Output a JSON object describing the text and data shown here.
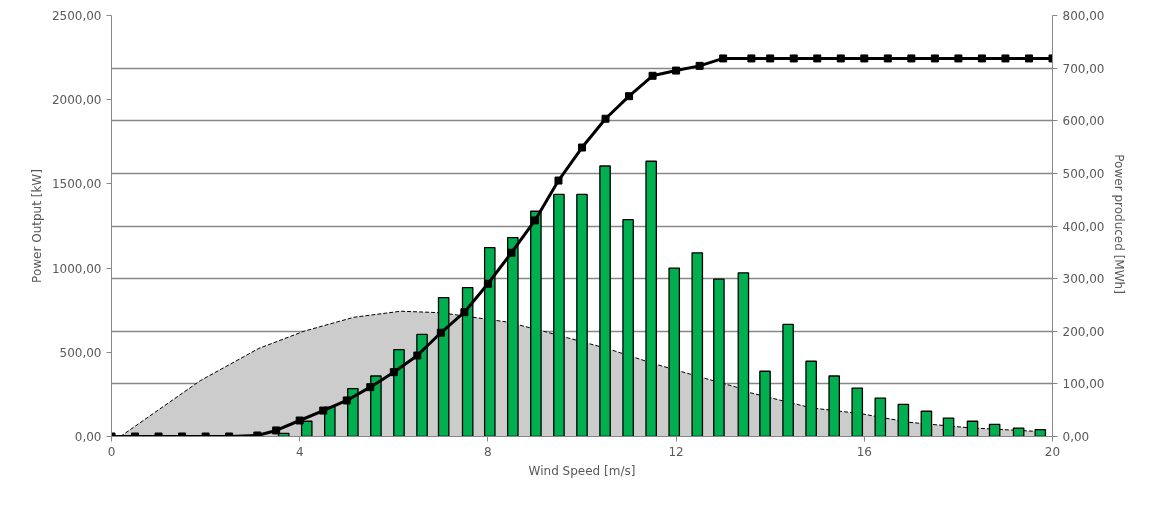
{
  "chart_data": {
    "type": "line",
    "xlabel": "Wind Speed [m/s]",
    "ylabel": "Power Output [kW]",
    "y2label": "Power produced  [MWh]",
    "xlim": [
      0,
      20
    ],
    "xticks": [
      0,
      4,
      8,
      12,
      16,
      20
    ],
    "ylim": [
      0,
      2500
    ],
    "yticks": [
      {
        "value": 0,
        "label": "0,00"
      },
      {
        "value": 500,
        "label": "500,00"
      },
      {
        "value": 1000,
        "label": "1000,00"
      },
      {
        "value": 1500,
        "label": "1500,00"
      },
      {
        "value": 2000,
        "label": "2000,00"
      },
      {
        "value": 2500,
        "label": "2500,00"
      }
    ],
    "y2lim": [
      0,
      800
    ],
    "y2ticks": [
      {
        "value": 0,
        "label": "0,00"
      },
      {
        "value": 100,
        "label": "100,00"
      },
      {
        "value": 200,
        "label": "200,00"
      },
      {
        "value": 300,
        "label": "300,00"
      },
      {
        "value": 400,
        "label": "400,00"
      },
      {
        "value": 500,
        "label": "500,00"
      },
      {
        "value": 600,
        "label": "600,00"
      },
      {
        "value": 700,
        "label": "700,00"
      },
      {
        "value": 800,
        "label": "800,00"
      }
    ],
    "grid": "y",
    "series": [
      {
        "type": "area",
        "color": "#cccccc",
        "line_style": "dashed",
        "x": [
          0.19,
          1.89,
          3.13,
          4.09,
          5.15,
          6.15,
          7.0,
          8.43,
          9.13,
          10.55,
          11.53,
          12.53,
          13.32,
          13.53,
          14.87,
          15.94,
          16.93,
          18.21,
          19.62
        ],
        "values": [
          0,
          332,
          523,
          625,
          708,
          744,
          735,
          679,
          629,
          521,
          432,
          352,
          290,
          263,
          170,
          135,
          85,
          52,
          31
        ]
      },
      {
        "type": "bar",
        "axis": "y2",
        "color": "#00b050",
        "x": [
          3.66,
          4.15,
          4.64,
          5.13,
          5.62,
          6.11,
          6.6,
          7.06,
          7.57,
          8.04,
          8.53,
          9.02,
          9.51,
          10.0,
          10.49,
          10.98,
          11.47,
          11.96,
          12.45,
          12.91,
          13.43,
          13.89,
          14.38,
          14.87,
          15.36,
          15.85,
          16.34,
          16.83,
          17.32,
          17.79,
          18.3,
          18.77,
          19.28,
          19.74
        ],
        "values": [
          6,
          29,
          56,
          91,
          115,
          165,
          194,
          264,
          283,
          359,
          378,
          428,
          460,
          460,
          514,
          412,
          523,
          320,
          349,
          299,
          311,
          124,
          213,
          143,
          115,
          92,
          73,
          61,
          48,
          35,
          29,
          23,
          16,
          13
        ]
      },
      {
        "color": "#000000",
        "marker": "square",
        "line_style": "solid",
        "x": [
          0,
          0.5,
          1,
          1.5,
          2,
          2.5,
          3.1,
          3.5,
          4,
          4.5,
          5,
          5.5,
          6,
          6.5,
          7,
          7.5,
          8,
          8.5,
          9,
          9.5,
          10,
          10.5,
          11,
          11.5,
          12,
          12.5,
          13,
          13.6,
          14,
          14.5,
          15,
          15.5,
          16,
          16.5,
          17,
          17.5,
          18,
          18.5,
          19,
          19.5,
          20
        ],
        "values": [
          0,
          0,
          0,
          0,
          0,
          0,
          6,
          36,
          95,
          154,
          214,
          293,
          382,
          481,
          616,
          738,
          907,
          1091,
          1283,
          1520,
          1716,
          1887,
          2021,
          2142,
          2173,
          2201,
          2245,
          2245,
          2245,
          2245,
          2245,
          2245,
          2245,
          2245,
          2245,
          2245,
          2245,
          2245,
          2245,
          2245,
          2245
        ]
      }
    ]
  }
}
